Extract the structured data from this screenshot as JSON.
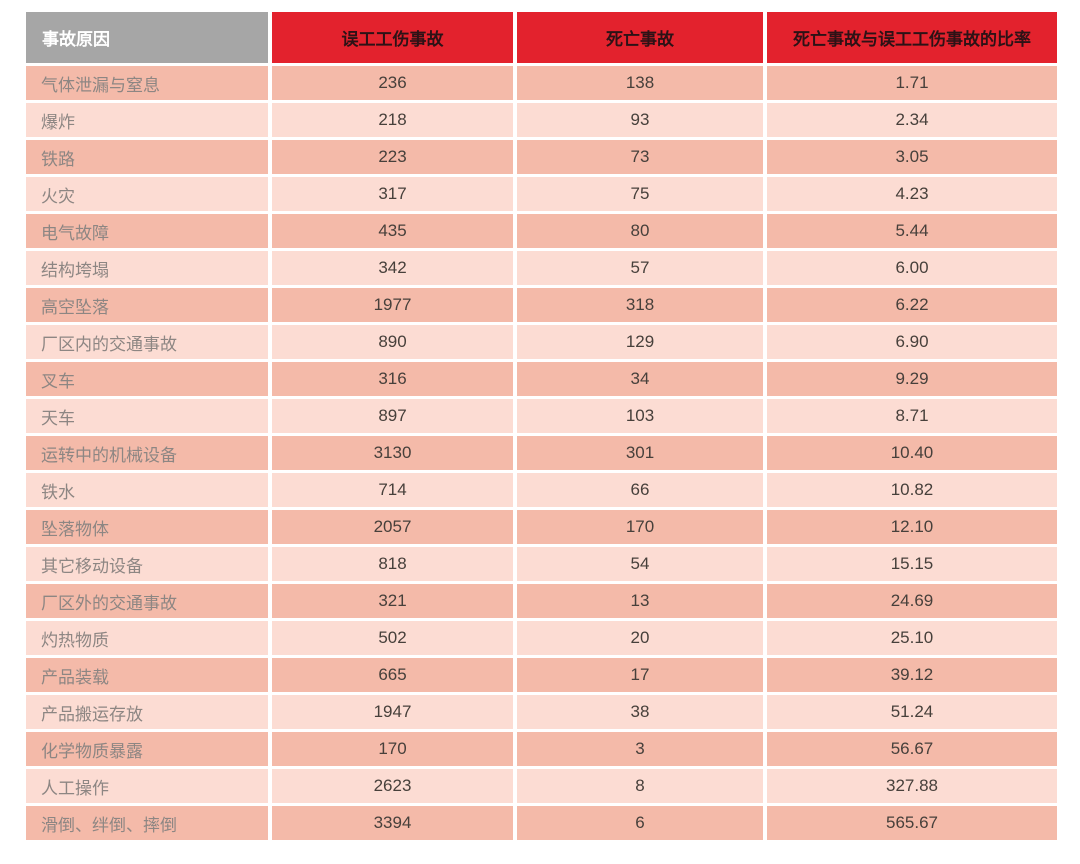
{
  "chart_data": {
    "type": "table",
    "columns": [
      "事故原因",
      "误工工伤事故",
      "死亡事故",
      "死亡事故与误工工伤事故的比率"
    ],
    "column_keys": [
      "cause",
      "lost_time_injury_accidents",
      "fatal_accidents",
      "ratio_fatal_to_lost_time"
    ],
    "rows": [
      [
        "气体泄漏与窒息",
        "236",
        "138",
        "1.71"
      ],
      [
        "爆炸",
        "218",
        "93",
        "2.34"
      ],
      [
        "铁路",
        "223",
        "73",
        "3.05"
      ],
      [
        "火灾",
        "317",
        "75",
        "4.23"
      ],
      [
        "电气故障",
        "435",
        "80",
        "5.44"
      ],
      [
        "结构垮塌",
        "342",
        "57",
        "6.00"
      ],
      [
        "高空坠落",
        "1977",
        "318",
        "6.22"
      ],
      [
        "厂区内的交通事故",
        "890",
        "129",
        "6.90"
      ],
      [
        "叉车",
        "316",
        "34",
        "9.29"
      ],
      [
        "天车",
        "897",
        "103",
        "8.71"
      ],
      [
        "运转中的机械设备",
        "3130",
        "301",
        "10.40"
      ],
      [
        "铁水",
        "714",
        "66",
        "10.82"
      ],
      [
        "坠落物体",
        "2057",
        "170",
        "12.10"
      ],
      [
        "其它移动设备",
        "818",
        "54",
        "15.15"
      ],
      [
        "厂区外的交通事故",
        "321",
        "13",
        "24.69"
      ],
      [
        "灼热物质",
        "502",
        "20",
        "25.10"
      ],
      [
        "产品装载",
        "665",
        "17",
        "39.12"
      ],
      [
        "产品搬运存放",
        "1947",
        "38",
        "51.24"
      ],
      [
        "化学物质暴露",
        "170",
        "3",
        "56.67"
      ],
      [
        "人工操作",
        "2623",
        "8",
        "327.88"
      ],
      [
        "滑倒、绊倒、摔倒",
        "3394",
        "6",
        "565.67"
      ]
    ],
    "colors": {
      "header_red": "#e3222d",
      "header_gray": "#a6a6a6",
      "header_red_text": "#2d1216",
      "row_odd": "#f4baa9",
      "row_even": "#fcdcd3",
      "cause_text": "#8d8683",
      "number_text": "#47403b"
    },
    "layout": {
      "grid": "off",
      "striping": "alternating rows, odd rows darker salmon",
      "gutters": "white 3-4px between all cells"
    }
  }
}
